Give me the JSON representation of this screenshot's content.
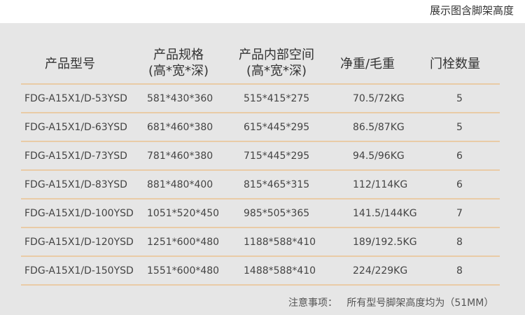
{
  "caption": "展示图含脚架高度",
  "headers": {
    "model": "产品型号",
    "spec": "产品规格",
    "spec_sub": "(高*宽*深)",
    "inner": "产品内部空间",
    "inner_sub": "(高*宽*深)",
    "weight": "净重/毛重",
    "bolts": "门栓数量"
  },
  "rows": [
    {
      "model": "FDG-A15X1/D-53YSD",
      "spec": "581*430*360",
      "inner": "515*415*275",
      "weight": "70.5/72KG",
      "bolts": "5"
    },
    {
      "model": "FDG-A15X1/D-63YSD",
      "spec": "681*460*380",
      "inner": "615*445*295",
      "weight": "86.5/87KG",
      "bolts": "5"
    },
    {
      "model": "FDG-A15X1/D-73YSD",
      "spec": "781*460*380",
      "inner": "715*445*295",
      "weight": "94.5/96KG",
      "bolts": "6"
    },
    {
      "model": "FDG-A15X1/D-83YSD",
      "spec": "881*480*400",
      "inner": "815*465*315",
      "weight": "112/114KG",
      "bolts": "6"
    },
    {
      "model": "FDG-A15X1/D-100YSD",
      "spec": "1051*520*450",
      "inner": "985*505*365",
      "weight": "141.5/144KG",
      "bolts": "7"
    },
    {
      "model": "FDG-A15X1/D-120YSD",
      "spec": "1251*600*480",
      "inner": "1188*588*410",
      "weight": "189/192.5KG",
      "bolts": "8"
    },
    {
      "model": "FDG-A15X1/D-150YSD",
      "spec": "1551*600*480",
      "inner": "1488*588*410",
      "weight": "224/229KG",
      "bolts": "8"
    }
  ],
  "note_label": "注意事项：",
  "note_text": "所有型号脚架高度均为（51MM）"
}
